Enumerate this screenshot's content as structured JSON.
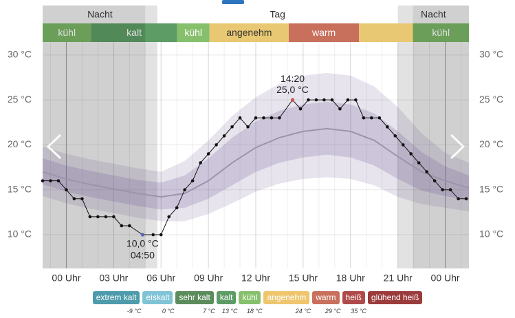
{
  "chart_data": {
    "type": "line",
    "xlim": [
      -1.5,
      25.5
    ],
    "ylim": [
      6.25,
      35.5
    ],
    "xticks": [
      {
        "value": 0,
        "label": "00 Uhr"
      },
      {
        "value": 3,
        "label": "03 Uhr"
      },
      {
        "value": 6,
        "label": "06 Uhr"
      },
      {
        "value": 9,
        "label": "09 Uhr"
      },
      {
        "value": 12,
        "label": "12 Uhr"
      },
      {
        "value": 15,
        "label": "15 Uhr"
      },
      {
        "value": 18,
        "label": "18 Uhr"
      },
      {
        "value": 21,
        "label": "21 Uhr"
      },
      {
        "value": 24,
        "label": "00 Uhr"
      }
    ],
    "yticks": [
      {
        "value": 10,
        "label": "10 °C"
      },
      {
        "value": 15,
        "label": "15 °C"
      },
      {
        "value": 20,
        "label": "20 °C"
      },
      {
        "value": 25,
        "label": "25 °C"
      },
      {
        "value": 30,
        "label": "30 °C"
      }
    ],
    "grid": true,
    "minor_grid_step": 1,
    "day_boundaries": [
      0,
      24
    ],
    "periods": [
      {
        "label": "Nacht",
        "range": [
          -1.5,
          5.76
        ],
        "dark": [
          -1.5,
          5.0
        ]
      },
      {
        "label": "Tag",
        "range": [
          5.76,
          21.0
        ]
      },
      {
        "label": "Nacht",
        "range": [
          21.0,
          25.5
        ],
        "dark": [
          21.95,
          25.5
        ]
      }
    ],
    "comfort": {
      "labels": [
        "kühl",
        "kalt",
        "kühl",
        "angenehm",
        "warm",
        null,
        "kühl"
      ],
      "bounds": [
        -1.5,
        1.57,
        7.02,
        9.07,
        14.09,
        18.54,
        21.95,
        25.5
      ],
      "colors": [
        "#7ab566",
        "#5e9c66",
        "#86c06c",
        "#e8c872",
        "#c8705c",
        "#e8c872",
        "#7ab566"
      ]
    },
    "normal": {
      "x": [
        -1.5,
        0,
        1.5,
        3,
        4.5,
        6,
        7.5,
        9,
        10.5,
        12,
        13.5,
        15,
        16.5,
        18,
        19.5,
        21,
        22.5,
        24,
        25.5
      ],
      "mean": [
        17,
        16.2,
        15.6,
        15.1,
        14.6,
        14.2,
        14.6,
        16,
        18,
        19.7,
        20.8,
        21.5,
        21.8,
        21.5,
        20.5,
        18.7,
        17,
        16,
        15.2
      ],
      "inner_high": [
        18.5,
        17.7,
        17.1,
        16.6,
        16.1,
        15.8,
        16.6,
        18.5,
        20.8,
        22.6,
        23.8,
        24.5,
        24.8,
        24.5,
        23.5,
        21.5,
        19.2,
        17.6,
        16.6
      ],
      "inner_low": [
        15.6,
        14.8,
        14.2,
        13.7,
        13.2,
        12.8,
        13,
        14,
        15.5,
        17,
        18,
        18.6,
        18.9,
        18.6,
        17.7,
        16.2,
        14.9,
        14.3,
        13.8
      ],
      "outer_high": [
        19.8,
        19,
        18.4,
        17.9,
        17.4,
        17,
        18.2,
        20.5,
        23.2,
        25.3,
        26.8,
        27.7,
        28,
        27.7,
        26.5,
        24.2,
        21.3,
        19.1,
        18
      ],
      "outer_low": [
        14.3,
        13.5,
        12.9,
        12.4,
        11.9,
        11.5,
        11.5,
        12.3,
        13.5,
        14.8,
        15.7,
        16.2,
        16.4,
        16.2,
        15.5,
        14.2,
        13.4,
        13,
        12.6
      ]
    },
    "temperature": {
      "color": "#111111",
      "x": [
        -1.5,
        -1,
        -0.5,
        0,
        0.5,
        1,
        1.5,
        2,
        2.5,
        3,
        3.5,
        4,
        4.83,
        5.5,
        6,
        6.5,
        7,
        7.5,
        8,
        8.5,
        9,
        9.5,
        10,
        10.5,
        11,
        11.5,
        12,
        12.5,
        13,
        13.5,
        14.33,
        14.83,
        15.33,
        15.83,
        16.33,
        16.83,
        17.33,
        17.83,
        18.33,
        18.83,
        19.33,
        19.83,
        20.33,
        20.83,
        21.33,
        21.83,
        22.33,
        22.83,
        23.33,
        23.83,
        24.33,
        24.83,
        25.33
      ],
      "values": [
        16,
        16,
        16,
        15,
        14,
        14,
        12,
        12,
        12,
        12,
        11,
        11,
        10,
        10,
        10,
        12,
        13,
        15,
        16,
        18,
        19,
        20,
        21,
        22,
        23,
        22,
        23,
        23,
        23,
        23,
        25,
        24,
        25,
        25,
        25,
        25,
        24,
        25,
        25,
        23,
        23,
        23,
        22,
        21,
        20,
        19,
        18,
        17,
        16,
        15,
        15,
        14,
        14
      ]
    },
    "annotations": [
      {
        "x": 14.33,
        "y": 25,
        "lines": [
          "14:20",
          "25,0 °C"
        ],
        "color": "#c8574a",
        "position": "above"
      },
      {
        "x": 4.83,
        "y": 10,
        "lines": [
          "10,0 °C",
          "04:50"
        ],
        "color": "#5b63b5",
        "position": "below"
      }
    ],
    "legend": [
      {
        "name": "extrem kalt",
        "color": "#4d9bab"
      },
      {
        "name": "eiskalt",
        "color": "#80c3d6"
      },
      {
        "name": "sehr kalt",
        "color": "#5d8c5c"
      },
      {
        "name": "kalt",
        "color": "#5e9c66"
      },
      {
        "name": "kühl",
        "color": "#86c06c"
      },
      {
        "name": "angenehm",
        "color": "#efc66e"
      },
      {
        "name": "warm",
        "color": "#c8705c"
      },
      {
        "name": "heiß",
        "color": "#b04a4a"
      },
      {
        "name": "glühend heiß",
        "color": "#9b3b3b"
      }
    ],
    "thresholds": [
      "-9 °C",
      "0 °C",
      "7 °C",
      "13 °C",
      "18 °C",
      "24 °C",
      "29 °C",
      "35 °C"
    ]
  }
}
